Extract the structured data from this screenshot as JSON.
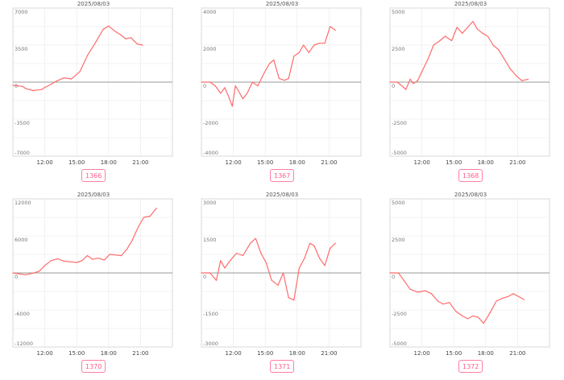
{
  "colors": {
    "line": "#ff6b6b",
    "grid": "#e8e8e8",
    "zero": "#9a9a9a",
    "border": "#cfcfcf",
    "badge": "#ff5c8a"
  },
  "chart_data": [
    {
      "type": "line",
      "title": "2025/08/03",
      "badge": "1366",
      "ylim": [
        -7000,
        7000
      ],
      "yticks": [
        "7000",
        "3500",
        "0",
        "-3500",
        "-7000"
      ],
      "xlim": [
        9,
        24
      ],
      "xticks": [
        "12:00",
        "15:00",
        "18:00",
        "21:00"
      ],
      "series": [
        {
          "x": [
            9,
            9.9,
            10.2,
            10.9,
            11.7,
            12.0,
            12.6,
            13.1,
            13.8,
            14.5,
            15.3,
            16.0,
            16.8,
            17.5,
            18.0,
            18.6,
            19.1,
            19.6,
            20.1,
            20.7,
            21.2
          ],
          "y": [
            -300,
            -400,
            -600,
            -800,
            -700,
            -500,
            -200,
            100,
            400,
            300,
            1000,
            2500,
            3800,
            5000,
            5300,
            4800,
            4500,
            4100,
            4200,
            3600,
            3500
          ]
        }
      ],
      "grid": true
    },
    {
      "type": "line",
      "title": "2025/08/03",
      "badge": "1367",
      "ylim": [
        -4000,
        4000
      ],
      "yticks": [
        "4000",
        "2000",
        "0",
        "-2000",
        "-4000"
      ],
      "xlim": [
        9,
        24
      ],
      "xticks": [
        "12:00",
        "15:00",
        "18:00",
        "21:00"
      ],
      "series": [
        {
          "x": [
            9,
            9.8,
            10.3,
            10.8,
            11.2,
            11.5,
            11.9,
            12.2,
            12.5,
            12.9,
            13.3,
            13.8,
            14.3,
            14.9,
            15.4,
            15.8,
            16.3,
            16.8,
            17.2,
            17.7,
            18.2,
            18.6,
            19.1,
            19.6,
            20.1,
            20.6,
            21.1,
            21.6
          ],
          "y": [
            0,
            0,
            -200,
            -600,
            -300,
            -700,
            -1300,
            -200,
            -500,
            -900,
            -600,
            0,
            -200,
            500,
            1000,
            1200,
            200,
            100,
            200,
            1400,
            1600,
            2000,
            1600,
            2000,
            2100,
            2100,
            3000,
            2800
          ]
        }
      ],
      "grid": true
    },
    {
      "type": "line",
      "title": "2025/08/03",
      "badge": "1368",
      "ylim": [
        -5000,
        5000
      ],
      "yticks": [
        "5000",
        "2500",
        "0",
        "-2500",
        "-5000"
      ],
      "xlim": [
        9,
        24
      ],
      "xticks": [
        "12:00",
        "15:00",
        "18:00",
        "21:00"
      ],
      "series": [
        {
          "x": [
            9,
            9.7,
            10.2,
            10.5,
            10.9,
            11.2,
            11.6,
            12.0,
            12.6,
            13.1,
            13.7,
            14.2,
            14.8,
            15.3,
            15.8,
            16.3,
            16.8,
            17.2,
            17.7,
            18.2,
            18.7,
            19.2,
            19.8,
            20.3,
            20.9,
            21.4,
            22.0
          ],
          "y": [
            0,
            0,
            -300,
            -500,
            200,
            -100,
            100,
            700,
            1600,
            2500,
            2800,
            3100,
            2800,
            3700,
            3300,
            3700,
            4100,
            3600,
            3300,
            3100,
            2500,
            2200,
            1500,
            900,
            400,
            100,
            200
          ]
        }
      ],
      "grid": true
    },
    {
      "type": "line",
      "title": "2025/08/03",
      "badge": "1370",
      "ylim": [
        -12000,
        12000
      ],
      "yticks": [
        "12000",
        "6000",
        "0",
        "-6000",
        "-12000"
      ],
      "xlim": [
        9,
        24
      ],
      "xticks": [
        "12:00",
        "15:00",
        "18:00",
        "21:00"
      ],
      "series": [
        {
          "x": [
            9,
            10.2,
            11.0,
            11.5,
            12.0,
            12.6,
            13.2,
            13.8,
            14.4,
            15.0,
            15.5,
            16.0,
            16.5,
            17.0,
            17.6,
            18.1,
            18.7,
            19.2,
            19.7,
            20.2,
            20.8,
            21.3,
            21.9,
            22.5
          ],
          "y": [
            0,
            -300,
            0,
            300,
            1200,
            2000,
            2300,
            1900,
            1800,
            1700,
            2000,
            2800,
            2200,
            2400,
            2100,
            3000,
            2900,
            2800,
            3800,
            5200,
            7500,
            9000,
            9200,
            10500
          ]
        }
      ],
      "grid": true
    },
    {
      "type": "line",
      "title": "2025/08/03",
      "badge": "1371",
      "ylim": [
        -3000,
        3000
      ],
      "yticks": [
        "3000",
        "1500",
        "0",
        "-1500",
        "-3000"
      ],
      "xlim": [
        9,
        24
      ],
      "xticks": [
        "12:00",
        "15:00",
        "18:00",
        "21:00"
      ],
      "series": [
        {
          "x": [
            9,
            9.8,
            10.4,
            10.8,
            11.2,
            11.7,
            12.3,
            12.9,
            13.6,
            14.1,
            14.6,
            15.1,
            15.6,
            16.2,
            16.7,
            17.2,
            17.7,
            18.2,
            18.7,
            19.2,
            19.6,
            20.1,
            20.6,
            21.1,
            21.6
          ],
          "y": [
            0,
            0,
            -300,
            500,
            200,
            500,
            800,
            700,
            1200,
            1400,
            800,
            400,
            -300,
            -500,
            0,
            -1000,
            -1100,
            200,
            600,
            1200,
            1100,
            600,
            300,
            1000,
            1200
          ]
        }
      ],
      "grid": true
    },
    {
      "type": "line",
      "title": "2025/08/03",
      "badge": "1372",
      "ylim": [
        -5000,
        5000
      ],
      "yticks": [
        "5000",
        "2500",
        "0",
        "-2500",
        "-5000"
      ],
      "xlim": [
        9,
        24
      ],
      "xticks": [
        "12:00",
        "15:00",
        "18:00",
        "21:00"
      ],
      "series": [
        {
          "x": [
            9,
            9.8,
            10.3,
            10.9,
            11.6,
            12.3,
            12.9,
            13.5,
            14.0,
            14.6,
            15.2,
            15.8,
            16.3,
            16.8,
            17.3,
            17.8,
            18.4,
            19.0,
            19.6,
            20.1,
            20.6,
            21.1,
            21.6
          ],
          "y": [
            0,
            0,
            -500,
            -1100,
            -1300,
            -1200,
            -1400,
            -1900,
            -2100,
            -2000,
            -2600,
            -2900,
            -3100,
            -2900,
            -3000,
            -3400,
            -2700,
            -1900,
            -1700,
            -1600,
            -1400,
            -1600,
            -1800
          ]
        }
      ],
      "grid": true
    }
  ]
}
